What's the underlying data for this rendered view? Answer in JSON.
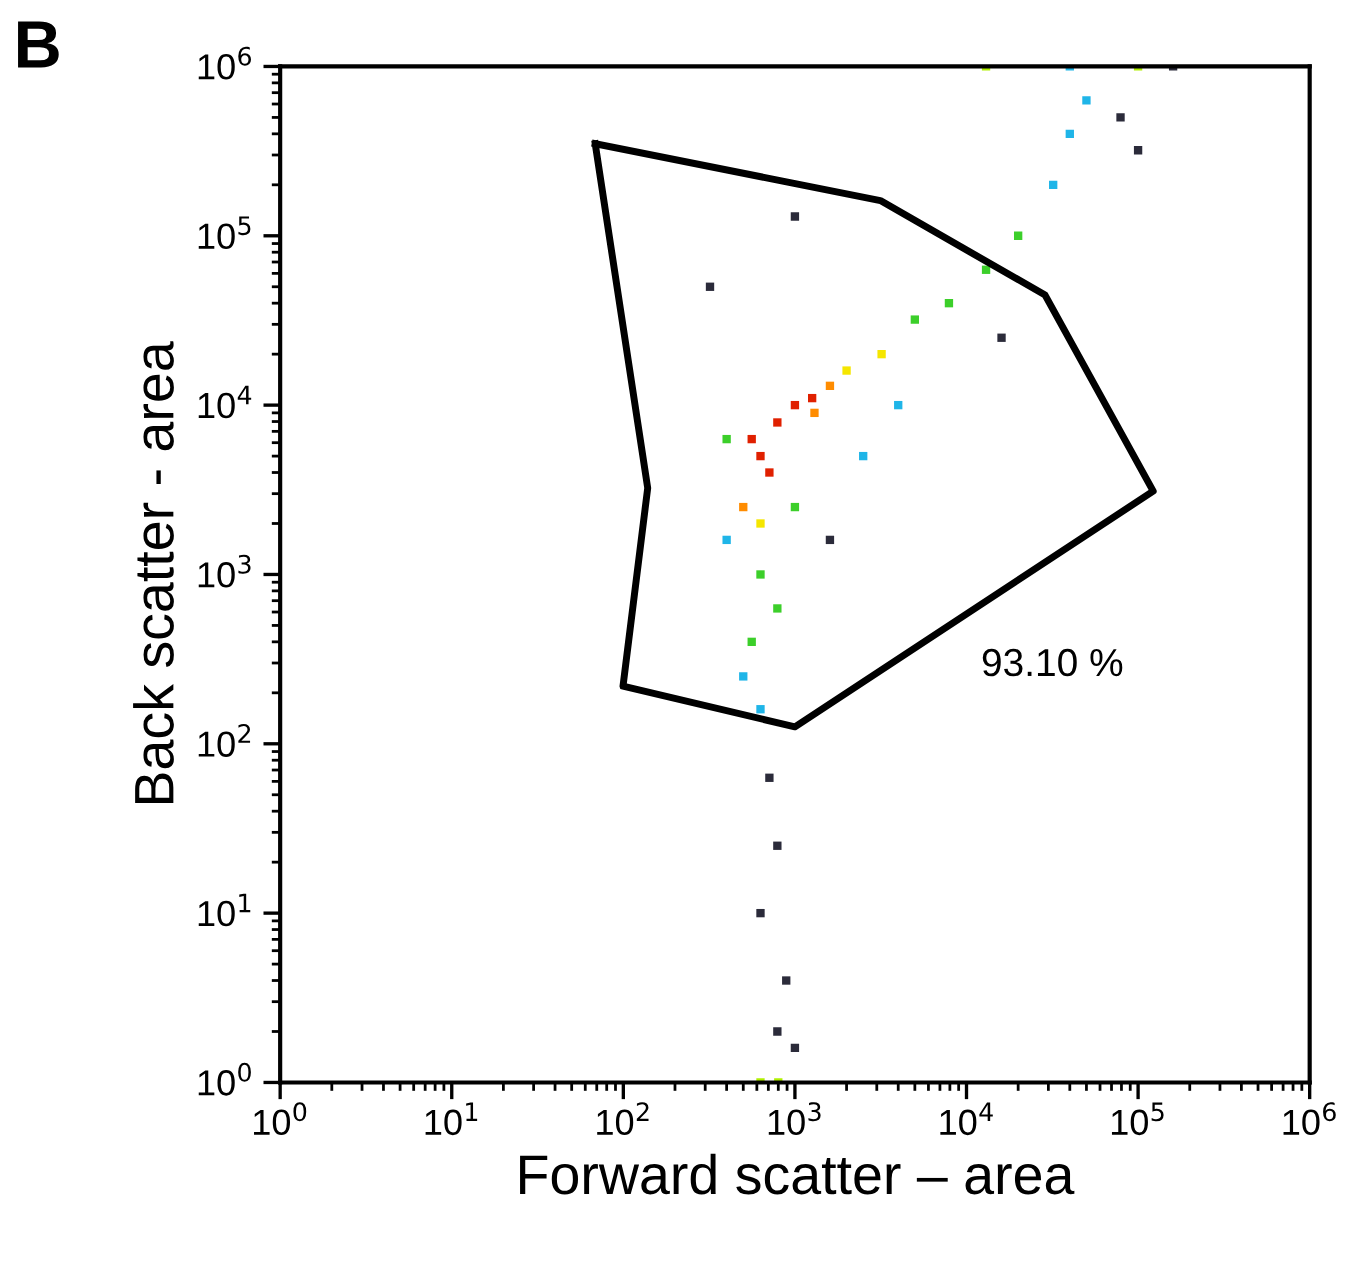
{
  "chart_data": {
    "type": "scatter",
    "xlabel": "Forward scatter – area",
    "ylabel": "Back scatter - area",
    "log": "xy",
    "xlim": [
      1,
      1000000
    ],
    "ylim": [
      1,
      1000000
    ],
    "xticks": [
      {
        "value": 1,
        "label": "10$^{0}$"
      },
      {
        "value": 10,
        "label": "10$^{1}$"
      },
      {
        "value": 100,
        "label": "10$^{2}$"
      },
      {
        "value": 1000,
        "label": "10$^{3}$"
      },
      {
        "value": 10000,
        "label": "10$^{4}$"
      },
      {
        "value": 100000,
        "label": "10$^{5}$"
      },
      {
        "value": 1000000,
        "label": "10$^{6}$"
      }
    ],
    "yticks": [
      {
        "value": 1,
        "label": "10$^{0}$"
      },
      {
        "value": 10,
        "label": "10$^{1}$"
      },
      {
        "value": 100,
        "label": "10$^{2}$"
      },
      {
        "value": 1000,
        "label": "10$^{3}$"
      },
      {
        "value": 10000,
        "label": "10$^{4}$"
      },
      {
        "value": 100000,
        "label": "10$^{5}$"
      },
      {
        "value": 1000000,
        "label": "10$^{6}$"
      }
    ],
    "grid": false,
    "legend": false,
    "marker": "square",
    "annotations": [
      "B",
      "93.10 %"
    ],
    "series": [
      {
        "x": [
          630,
          560,
          790,
          1000,
          710,
          1260,
          1600,
          500,
          1300,
          3200,
          630,
          2000,
          5000,
          7900,
          13000,
          630,
          790,
          560,
          400,
          1000,
          20000,
          32000,
          40000,
          50000,
          500,
          630,
          400,
          2500,
          4000,
          40000,
          79000,
          100000,
          16000,
          1600,
          320,
          1000,
          710,
          790,
          630,
          890,
          790,
          1000,
          160000,
          13000,
          100000,
          630,
          800
        ],
        "values": [
          5000,
          6300,
          7900,
          10000,
          4000,
          11000,
          13000,
          2500,
          9000,
          20000,
          2000,
          16000,
          32000,
          40000,
          63000,
          1000,
          630,
          400,
          6300,
          2500,
          100000,
          200000,
          400000,
          630000,
          250,
          160,
          1600,
          5000,
          10000,
          1000000,
          500000,
          320000,
          25000,
          1600,
          50000,
          130000,
          63,
          25,
          10,
          4,
          2,
          1.6,
          1000000,
          1000000,
          1000000,
          1,
          1
        ],
        "colors": [
          "#e02000",
          "#e02000",
          "#e02000",
          "#e02000",
          "#e02000",
          "#e02000",
          "#ff8c00",
          "#ff8c00",
          "#ff8c00",
          "#f5e600",
          "#f5e600",
          "#f5e600",
          "#3ccf2a",
          "#3ccf2a",
          "#3ccf2a",
          "#3ccf2a",
          "#3ccf2a",
          "#3ccf2a",
          "#3ccf2a",
          "#3ccf2a",
          "#3ccf2a",
          "#1fb5e8",
          "#1fb5e8",
          "#1fb5e8",
          "#1fb5e8",
          "#1fb5e8",
          "#1fb5e8",
          "#1fb5e8",
          "#1fb5e8",
          "#1fb5e8",
          "#2b2b3a",
          "#2b2b3a",
          "#2b2b3a",
          "#2b2b3a",
          "#2b2b3a",
          "#2b2b3a",
          "#2b2b3a",
          "#2b2b3a",
          "#2b2b3a",
          "#2b2b3a",
          "#2b2b3a",
          "#2b2b3a",
          "#2b2b3a",
          "#b0f000",
          "#b0f000",
          "#b0f000",
          "#b0f000"
        ]
      }
    ]
  }
}
